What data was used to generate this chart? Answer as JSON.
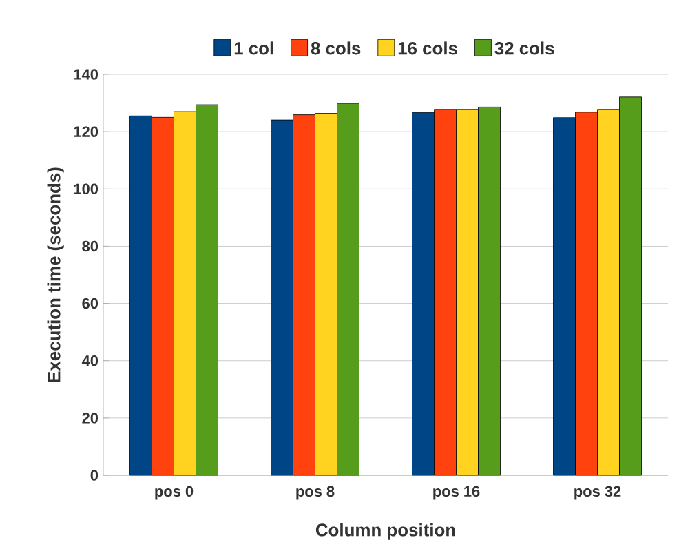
{
  "chart_data": {
    "type": "bar",
    "xlabel": "Column position",
    "ylabel": "Execution time (seconds)",
    "categories": [
      "pos 0",
      "pos 8",
      "pos 16",
      "pos 32"
    ],
    "series": [
      {
        "name": "1 col",
        "color": "#004586",
        "values": [
          125.5,
          124.1,
          126.7,
          124.9
        ]
      },
      {
        "name": "8 cols",
        "color": "#ff420e",
        "values": [
          125.0,
          125.9,
          127.8,
          126.8
        ]
      },
      {
        "name": "16 cols",
        "color": "#ffd320",
        "values": [
          127.0,
          126.4,
          127.8,
          127.8
        ]
      },
      {
        "name": "32 cols",
        "color": "#579d1c",
        "values": [
          129.4,
          129.9,
          128.6,
          132.1
        ]
      }
    ],
    "ylim": [
      0,
      140
    ],
    "yticks": [
      0,
      20,
      40,
      60,
      80,
      100,
      120,
      140
    ],
    "grid": "y",
    "legend": "top"
  }
}
